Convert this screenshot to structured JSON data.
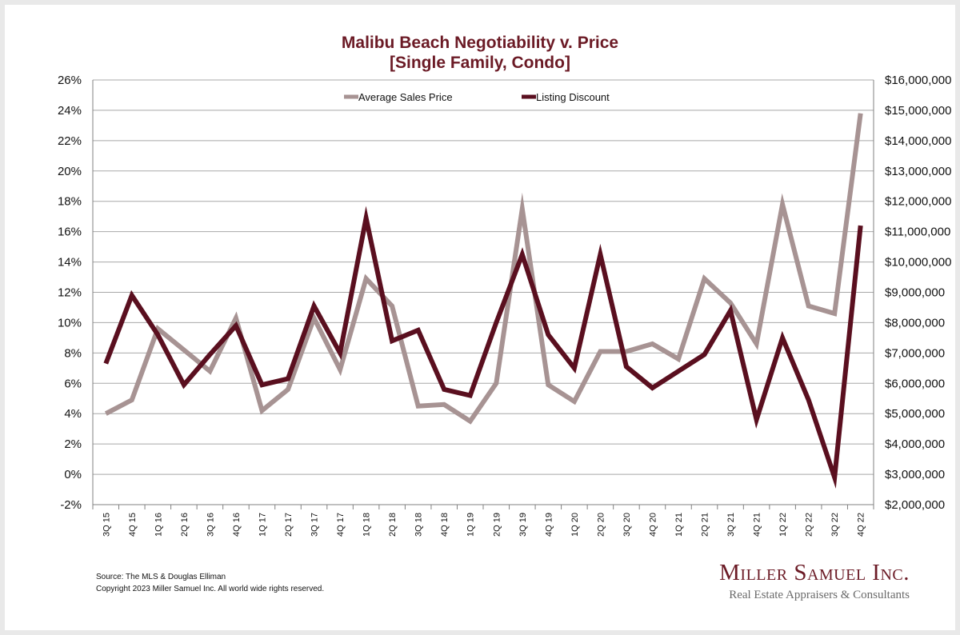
{
  "title_line1": "Malibu Beach Negotiability v. Price",
  "title_line2": "[Single Family, Condo]",
  "chart_data": {
    "type": "line",
    "categories": [
      "3Q 15",
      "4Q 15",
      "1Q 16",
      "2Q 16",
      "3Q 16",
      "4Q 16",
      "1Q 17",
      "2Q 17",
      "3Q 17",
      "4Q 17",
      "1Q 18",
      "2Q 18",
      "3Q 18",
      "4Q 18",
      "1Q 19",
      "2Q 19",
      "3Q 19",
      "4Q 19",
      "1Q 20",
      "2Q 20",
      "3Q 20",
      "4Q 20",
      "1Q 21",
      "2Q 21",
      "3Q 21",
      "4Q 21",
      "1Q 22",
      "2Q 22",
      "3Q 22",
      "4Q 22"
    ],
    "left_axis": {
      "ylim": [
        -2,
        26
      ],
      "ticks": [
        "-2%",
        "0%",
        "2%",
        "4%",
        "6%",
        "8%",
        "10%",
        "12%",
        "14%",
        "16%",
        "18%",
        "20%",
        "22%",
        "24%",
        "26%"
      ]
    },
    "right_axis": {
      "ylim": [
        2000000,
        16000000
      ],
      "ticks": [
        "$2,000,000",
        "$3,000,000",
        "$4,000,000",
        "$5,000,000",
        "$6,000,000",
        "$7,000,000",
        "$8,000,000",
        "$9,000,000",
        "$10,000,000",
        "$11,000,000",
        "$12,000,000",
        "$13,000,000",
        "$14,000,000",
        "$15,000,000",
        "$16,000,000"
      ]
    },
    "series": [
      {
        "name": "Average Sales Price",
        "axis": "right",
        "color": "#a79393",
        "values": [
          5000000,
          5450000,
          7800000,
          7100000,
          6400000,
          8150000,
          5100000,
          5800000,
          8150000,
          6450000,
          9450000,
          8550000,
          5250000,
          5300000,
          4750000,
          6000000,
          11750000,
          5950000,
          5400000,
          7050000,
          7050000,
          7300000,
          6800000,
          9450000,
          8650000,
          7300000,
          11900000,
          8550000,
          8300000,
          14900000
        ]
      },
      {
        "name": "Listing Discount",
        "axis": "left",
        "color": "#5a0f1f",
        "values": [
          7.3,
          11.8,
          9.2,
          5.9,
          7.9,
          9.8,
          5.9,
          6.3,
          11.1,
          8.0,
          16.9,
          8.8,
          9.5,
          5.6,
          5.2,
          10.0,
          14.5,
          9.2,
          7.0,
          14.5,
          7.1,
          5.7,
          6.8,
          7.9,
          10.8,
          3.6,
          9.0,
          4.9,
          -0.2,
          16.4
        ]
      }
    ],
    "legend_position": "top-center",
    "grid": true
  },
  "source_text": "Source: The MLS & Douglas Elliman",
  "copyright_text": "Copyright 2023 Miller Samuel Inc.  All world wide rights reserved.",
  "brand_name": "Miller Samuel Inc.",
  "brand_tagline": "Real Estate Appraisers & Consultants"
}
